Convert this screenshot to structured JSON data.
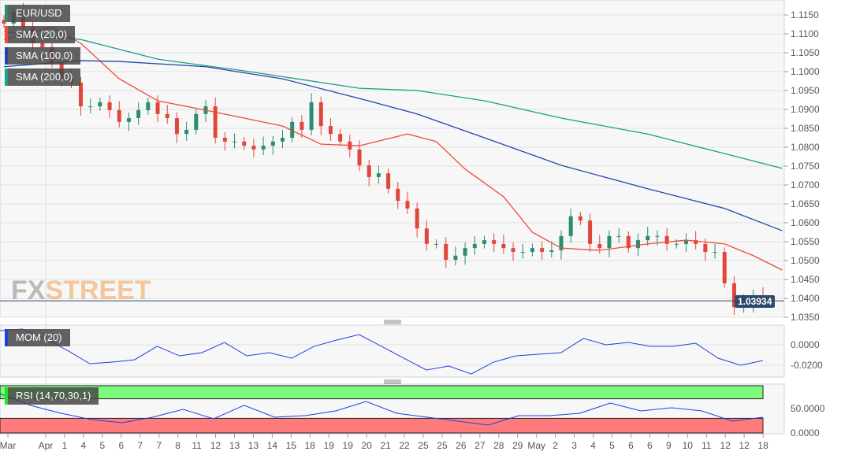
{
  "chart_data": {
    "type": "candlestick",
    "symbol": "EUR/USD",
    "current_price": "1.03934",
    "y_ticks": [
      "1.1150",
      "1.1100",
      "1.1050",
      "1.1000",
      "1.0950",
      "1.0900",
      "1.0850",
      "1.0800",
      "1.0750",
      "1.0700",
      "1.0650",
      "1.0600",
      "1.0550",
      "1.0500",
      "1.0450",
      "1.0400",
      "1.0350"
    ],
    "ylim": [
      1.034,
      1.119
    ],
    "x_labels": [
      "Mar",
      "Apr",
      "1",
      "4",
      "5",
      "6",
      "7",
      "7",
      "8",
      "11",
      "12",
      "13",
      "13",
      "14",
      "15",
      "18",
      "19",
      "19",
      "20",
      "21",
      "22",
      "25",
      "25",
      "26",
      "27",
      "28",
      "29",
      "May",
      "2",
      "3",
      "4",
      "5",
      "6",
      "6",
      "9",
      "10",
      "11",
      "12",
      "12",
      "18"
    ],
    "closes": [
      1.1127,
      1.1158,
      1.1117,
      1.1075,
      1.1065,
      1.1023,
      1.0981,
      1.0971,
      1.0908,
      1.0908,
      1.0919,
      1.0898,
      1.0867,
      1.0877,
      1.0898,
      1.0919,
      1.0888,
      1.0877,
      1.0835,
      1.0846,
      1.0888,
      1.0908,
      1.0825,
      1.0815,
      1.0815,
      1.0804,
      1.0794,
      1.0804,
      1.0815,
      1.0825,
      1.0867,
      1.0846,
      1.0919,
      1.0856,
      1.0835,
      1.0815,
      1.0794,
      1.0752,
      1.0721,
      1.0731,
      1.069,
      1.0658,
      1.0638,
      1.0585,
      1.0544,
      1.0544,
      1.0502,
      1.0513,
      1.0533,
      1.0544,
      1.0554,
      1.0544,
      1.0533,
      1.0523,
      1.0523,
      1.0533,
      1.0523,
      1.0527,
      1.0565,
      1.0617,
      1.0606,
      1.0544,
      1.0533,
      1.0565,
      1.0565,
      1.0533,
      1.0554,
      1.0565,
      1.0565,
      1.0544,
      1.0544,
      1.0554,
      1.0544,
      1.0523,
      1.0523,
      1.044,
      1.0377,
      1.0387,
      1.0408,
      1.0393
    ],
    "sma": [
      {
        "name": "SMA (20,0)",
        "color": "#f04a3a",
        "points": [
          [
            0,
            1.1085
          ],
          [
            5,
            1.1117
          ],
          [
            8,
            1.1075
          ],
          [
            12,
            1.0981
          ],
          [
            16,
            1.0923
          ],
          [
            21,
            1.0898
          ],
          [
            25,
            1.0877
          ],
          [
            29,
            1.0856
          ],
          [
            33,
            1.0808
          ],
          [
            37,
            1.0804
          ],
          [
            42,
            1.0835
          ],
          [
            45,
            1.0815
          ],
          [
            48,
            1.0742
          ],
          [
            52,
            1.0669
          ],
          [
            55,
            1.0575
          ],
          [
            58,
            1.0533
          ],
          [
            62,
            1.0527
          ],
          [
            67,
            1.0544
          ],
          [
            71,
            1.0554
          ],
          [
            75,
            1.0544
          ],
          [
            78,
            1.0513
          ],
          [
            81,
            1.0475
          ]
        ]
      },
      {
        "name": "SMA (100,0)",
        "color": "#2446a8",
        "points": [
          [
            0,
            1.1013
          ],
          [
            8,
            1.1029
          ],
          [
            12,
            1.1027
          ],
          [
            21,
            1.1013
          ],
          [
            29,
            1.0981
          ],
          [
            37,
            1.0929
          ],
          [
            43,
            1.0888
          ],
          [
            50,
            1.0825
          ],
          [
            58,
            1.0752
          ],
          [
            67,
            1.069
          ],
          [
            75,
            1.0638
          ],
          [
            81,
            1.0579
          ]
        ]
      },
      {
        "name": "SMA (200,0)",
        "color": "#1aa085",
        "points": [
          [
            0,
            1.1106
          ],
          [
            8,
            1.1085
          ],
          [
            16,
            1.1033
          ],
          [
            25,
            1.1002
          ],
          [
            37,
            1.0956
          ],
          [
            43,
            1.095
          ],
          [
            50,
            1.0923
          ],
          [
            58,
            1.0877
          ],
          [
            67,
            1.0835
          ],
          [
            75,
            1.0783
          ],
          [
            81,
            1.0744
          ]
        ]
      }
    ],
    "mom": {
      "name": "MOM (20)",
      "color": "#1f3fe0",
      "y_ticks": [
        "0.0000",
        "-0.0200"
      ],
      "values": [
        0.0138,
        0.0154,
        0.0062,
        -0.0054,
        -0.0185,
        -0.0169,
        -0.0146,
        -0.0015,
        -0.0108,
        -0.0077,
        0.0023,
        -0.0108,
        -0.0077,
        -0.0131,
        -0.0015,
        0.0046,
        0.01,
        -0.0015,
        -0.0131,
        -0.0246,
        -0.0208,
        -0.0285,
        -0.0169,
        -0.0108,
        -0.0092,
        -0.0077,
        0.0062,
        0,
        0.0023,
        -0.0015,
        -0.0015,
        0.0015,
        -0.0131,
        -0.02,
        -0.0154
      ]
    },
    "rsi": {
      "name": "RSI (14,70,30,1)",
      "color": "#1f3fe0",
      "overbought": 70,
      "oversold": 30,
      "y_ticks": [
        "50.0000",
        "0.0000"
      ],
      "values": [
        80.6,
        56.5,
        40.3,
        27.4,
        21.0,
        32.3,
        48.4,
        29.0,
        56.5,
        32.3,
        35.5,
        45.2,
        64.5,
        40.3,
        32.3,
        24.2,
        16.1,
        35.5,
        35.5,
        40.3,
        61.3,
        45.2,
        51.6,
        45.2,
        24.2,
        32.3
      ]
    },
    "colors": {
      "up": "#2a8c70",
      "down": "#e0463a",
      "ob_band": "#7cfc7c",
      "os_band": "#ff7b7b"
    }
  },
  "watermark": {
    "fx": "FX",
    "street": "STREET"
  }
}
